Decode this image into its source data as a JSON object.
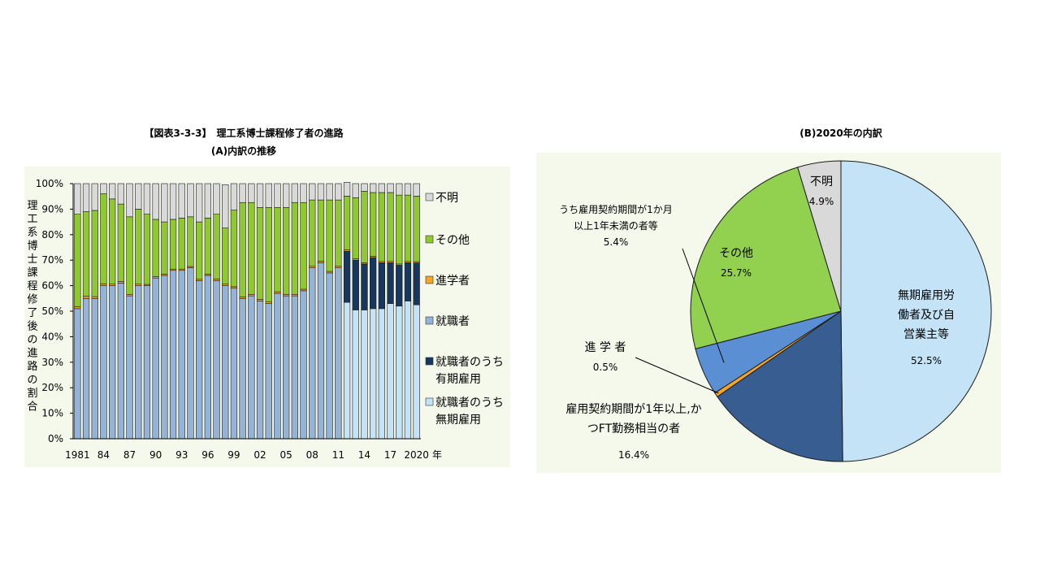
{
  "chart_data": [
    {
      "type": "bar",
      "stacked": true,
      "title": "【図表3-3-3】　理工系博士課程修了者の進路",
      "subtitle": "(A)内訳の推移",
      "ylabel": "理工系博士課程修了後の進路の割合",
      "ylim": [
        0,
        100
      ],
      "yticks": [
        "0%",
        "10%",
        "20%",
        "30%",
        "40%",
        "50%",
        "60%",
        "70%",
        "80%",
        "90%",
        "100%"
      ],
      "x_tick_labels": [
        "1981",
        "84",
        "87",
        "90",
        "93",
        "96",
        "99",
        "02",
        "05",
        "08",
        "11",
        "14",
        "17",
        "2020"
      ],
      "x_unit": "年",
      "legend_position": "right",
      "categories": [
        1981,
        1982,
        1983,
        1984,
        1985,
        1986,
        1987,
        1988,
        1989,
        1990,
        1991,
        1992,
        1993,
        1994,
        1995,
        1996,
        1997,
        1998,
        1999,
        2000,
        2001,
        2002,
        2003,
        2004,
        2005,
        2006,
        2007,
        2008,
        2009,
        2010,
        2011,
        2012,
        2013,
        2014,
        2015,
        2016,
        2017,
        2018,
        2019,
        2020
      ],
      "series": [
        {
          "name": "就職者",
          "color": "#95b3d7",
          "values": [
            51,
            55,
            55,
            60,
            60,
            61,
            56,
            60,
            60,
            63,
            64,
            66,
            66,
            67,
            62,
            64,
            62,
            60,
            59,
            55,
            56,
            54,
            53,
            57,
            56,
            56,
            58,
            67,
            69,
            65,
            67,
            0,
            0,
            0,
            0,
            0,
            0,
            0,
            0,
            0
          ]
        },
        {
          "name": "就職者のうち無期雇用",
          "color": "#c5e3f6",
          "values": [
            0,
            0,
            0,
            0,
            0,
            0,
            0,
            0,
            0,
            0,
            0,
            0,
            0,
            0,
            0,
            0,
            0,
            0,
            0,
            0,
            0,
            0,
            0,
            0,
            0,
            0,
            0,
            0,
            0,
            0,
            0,
            53.5,
            50.5,
            50.5,
            51,
            51,
            53,
            52,
            54,
            52.5
          ]
        },
        {
          "name": "就職者のうち有期雇用",
          "color": "#17375e",
          "values": [
            0,
            0,
            0,
            0,
            0,
            0,
            0,
            0,
            0,
            0,
            0,
            0,
            0,
            0,
            0,
            0,
            0,
            0,
            0,
            0,
            0,
            0,
            0,
            0,
            0,
            0,
            0,
            0,
            0,
            0,
            0,
            20,
            19.5,
            18,
            20,
            18,
            16,
            16,
            15,
            16.4
          ]
        },
        {
          "name": "進学者",
          "color": "#f5a623",
          "values": [
            0.8,
            0.8,
            0.7,
            0.7,
            0.6,
            0.6,
            0.6,
            0.6,
            0.5,
            0.5,
            0.5,
            0.5,
            0.5,
            0.5,
            0.5,
            0.5,
            0.6,
            0.6,
            0.6,
            0.6,
            0.6,
            0.6,
            0.6,
            0.6,
            0.6,
            0.6,
            0.6,
            0.6,
            0.6,
            0.6,
            0.6,
            0.6,
            0.5,
            0.5,
            0.5,
            0.5,
            0.5,
            0.5,
            0.5,
            0.5
          ]
        },
        {
          "name": "その他",
          "color": "#8fc830",
          "values": [
            36.2,
            33.2,
            33.8,
            35.3,
            33.4,
            30.4,
            30.4,
            29.4,
            27.5,
            22.5,
            20.5,
            19.5,
            20,
            19.5,
            22.5,
            22,
            25.4,
            22,
            30,
            37,
            36,
            36,
            37,
            33,
            34,
            36,
            34,
            26,
            24,
            28,
            26,
            21,
            24,
            28,
            25,
            27,
            27,
            27,
            26,
            25.7
          ]
        },
        {
          "name": "不明",
          "color": "#d9d9d9",
          "values": [
            12,
            11,
            10.5,
            4,
            6,
            8,
            13,
            10,
            12,
            14,
            15,
            14,
            13.5,
            13,
            15,
            13.5,
            12,
            17,
            10.4,
            7.4,
            7.4,
            9.4,
            9.4,
            9.4,
            9.4,
            7.4,
            7.4,
            6.4,
            6.4,
            6.4,
            6.4,
            5.4,
            5.5,
            3,
            3.5,
            3.5,
            3.5,
            4.5,
            4.5,
            4.9
          ]
        }
      ],
      "legend": [
        {
          "label": "不明",
          "color": "#d9d9d9"
        },
        {
          "label": "その他",
          "color": "#8fc830"
        },
        {
          "label": "進学者",
          "color": "#f5a623"
        },
        {
          "label": "就職者",
          "color": "#95b3d7"
        },
        {
          "label_lines": [
            "就職者のうち",
            "有期雇用"
          ],
          "color": "#17375e"
        },
        {
          "label_lines": [
            "就職者のうち",
            "無期雇用"
          ],
          "color": "#c5e3f6"
        }
      ]
    },
    {
      "type": "pie",
      "title": "(B)2020年の内訳",
      "slices": [
        {
          "name": "無期雇用労働者及び自営業主等",
          "label_lines": [
            "無期雇用労",
            "働者及び自",
            "営業主等"
          ],
          "value": 52.5,
          "value_label": "52.5%",
          "color": "#c5e3f6"
        },
        {
          "name": "雇用契約期間が1年以上,かつFT勤務相当の者",
          "label_lines": [
            "雇用契約期間が1年以上,か",
            "つFT勤務相当の者"
          ],
          "value": 16.4,
          "value_label": "16.4%",
          "color": "#375d91"
        },
        {
          "name": "進 学 者",
          "label_lines": [
            "進 学 者"
          ],
          "value": 0.5,
          "value_label": "0.5%",
          "color": "#f5a623"
        },
        {
          "name": "うち雇用契約期間が1か月以上1年未満の者等",
          "label_lines": [
            "うち雇用契約期間が1か月",
            "以上1年未満の者等"
          ],
          "value": 5.4,
          "value_label": "5.4%",
          "color": "#5b8fd4"
        },
        {
          "name": "その他",
          "label_lines": [
            "その他"
          ],
          "value": 25.7,
          "value_label": "25.7%",
          "color": "#92d050"
        },
        {
          "name": "不明",
          "label_lines": [
            "不明"
          ],
          "value": 4.9,
          "value_label": "4.9%",
          "color": "#d9d9d9"
        }
      ]
    }
  ]
}
